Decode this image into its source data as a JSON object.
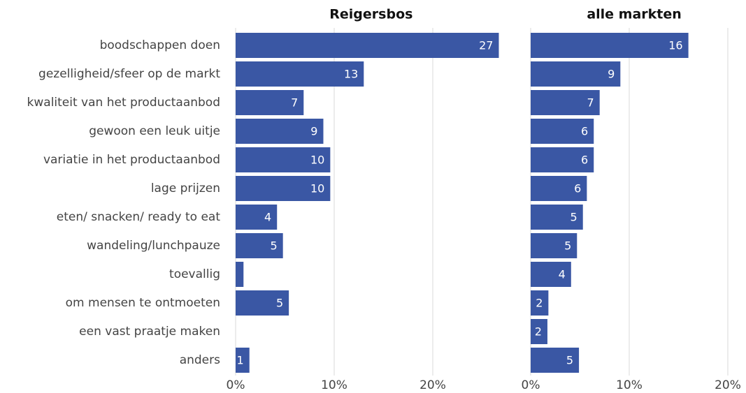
{
  "chart_data": [
    {
      "type": "bar",
      "orientation": "horizontal",
      "title": "Reigersbos",
      "color": "#3a57a4",
      "categories": [
        "boodschappen doen",
        "gezelligheid/sfeer op de markt",
        "kwaliteit van het productaanbod",
        "gewoon een leuk uitje",
        "variatie in het productaanbod",
        "lage prijzen",
        "eten/ snacken/ ready to eat",
        "wandeling/lunchpauze",
        "toevallig",
        "om mensen te ontmoeten",
        "een vast praatje maken",
        "anders"
      ],
      "values": [
        26.7,
        13.0,
        6.9,
        8.9,
        9.6,
        9.6,
        4.2,
        4.8,
        0.8,
        5.4,
        0,
        1.4
      ],
      "value_labels": [
        "27",
        "13",
        "7",
        "9",
        "10",
        "10",
        "4",
        "5",
        null,
        "5",
        null,
        "1"
      ],
      "xlim": [
        0,
        27.5
      ],
      "xticks": [
        {
          "value": 0,
          "label": "0%"
        },
        {
          "value": 10,
          "label": "10%"
        },
        {
          "value": 20,
          "label": "20%"
        }
      ],
      "grid": true
    },
    {
      "type": "bar",
      "orientation": "horizontal",
      "title": "alle markten",
      "color": "#3a57a4",
      "values": [
        16.0,
        9.1,
        7.0,
        6.4,
        6.4,
        5.7,
        5.3,
        4.7,
        4.1,
        1.8,
        1.7,
        4.9
      ],
      "value_labels": [
        "16",
        "9",
        "7",
        "6",
        "6",
        "6",
        "5",
        "5",
        "4",
        "2",
        "2",
        "5"
      ],
      "xlim": [
        0,
        21
      ],
      "xticks": [
        {
          "value": 0,
          "label": "0%"
        },
        {
          "value": 10,
          "label": "10%"
        },
        {
          "value": 20,
          "label": "20%"
        }
      ],
      "grid": true
    }
  ]
}
